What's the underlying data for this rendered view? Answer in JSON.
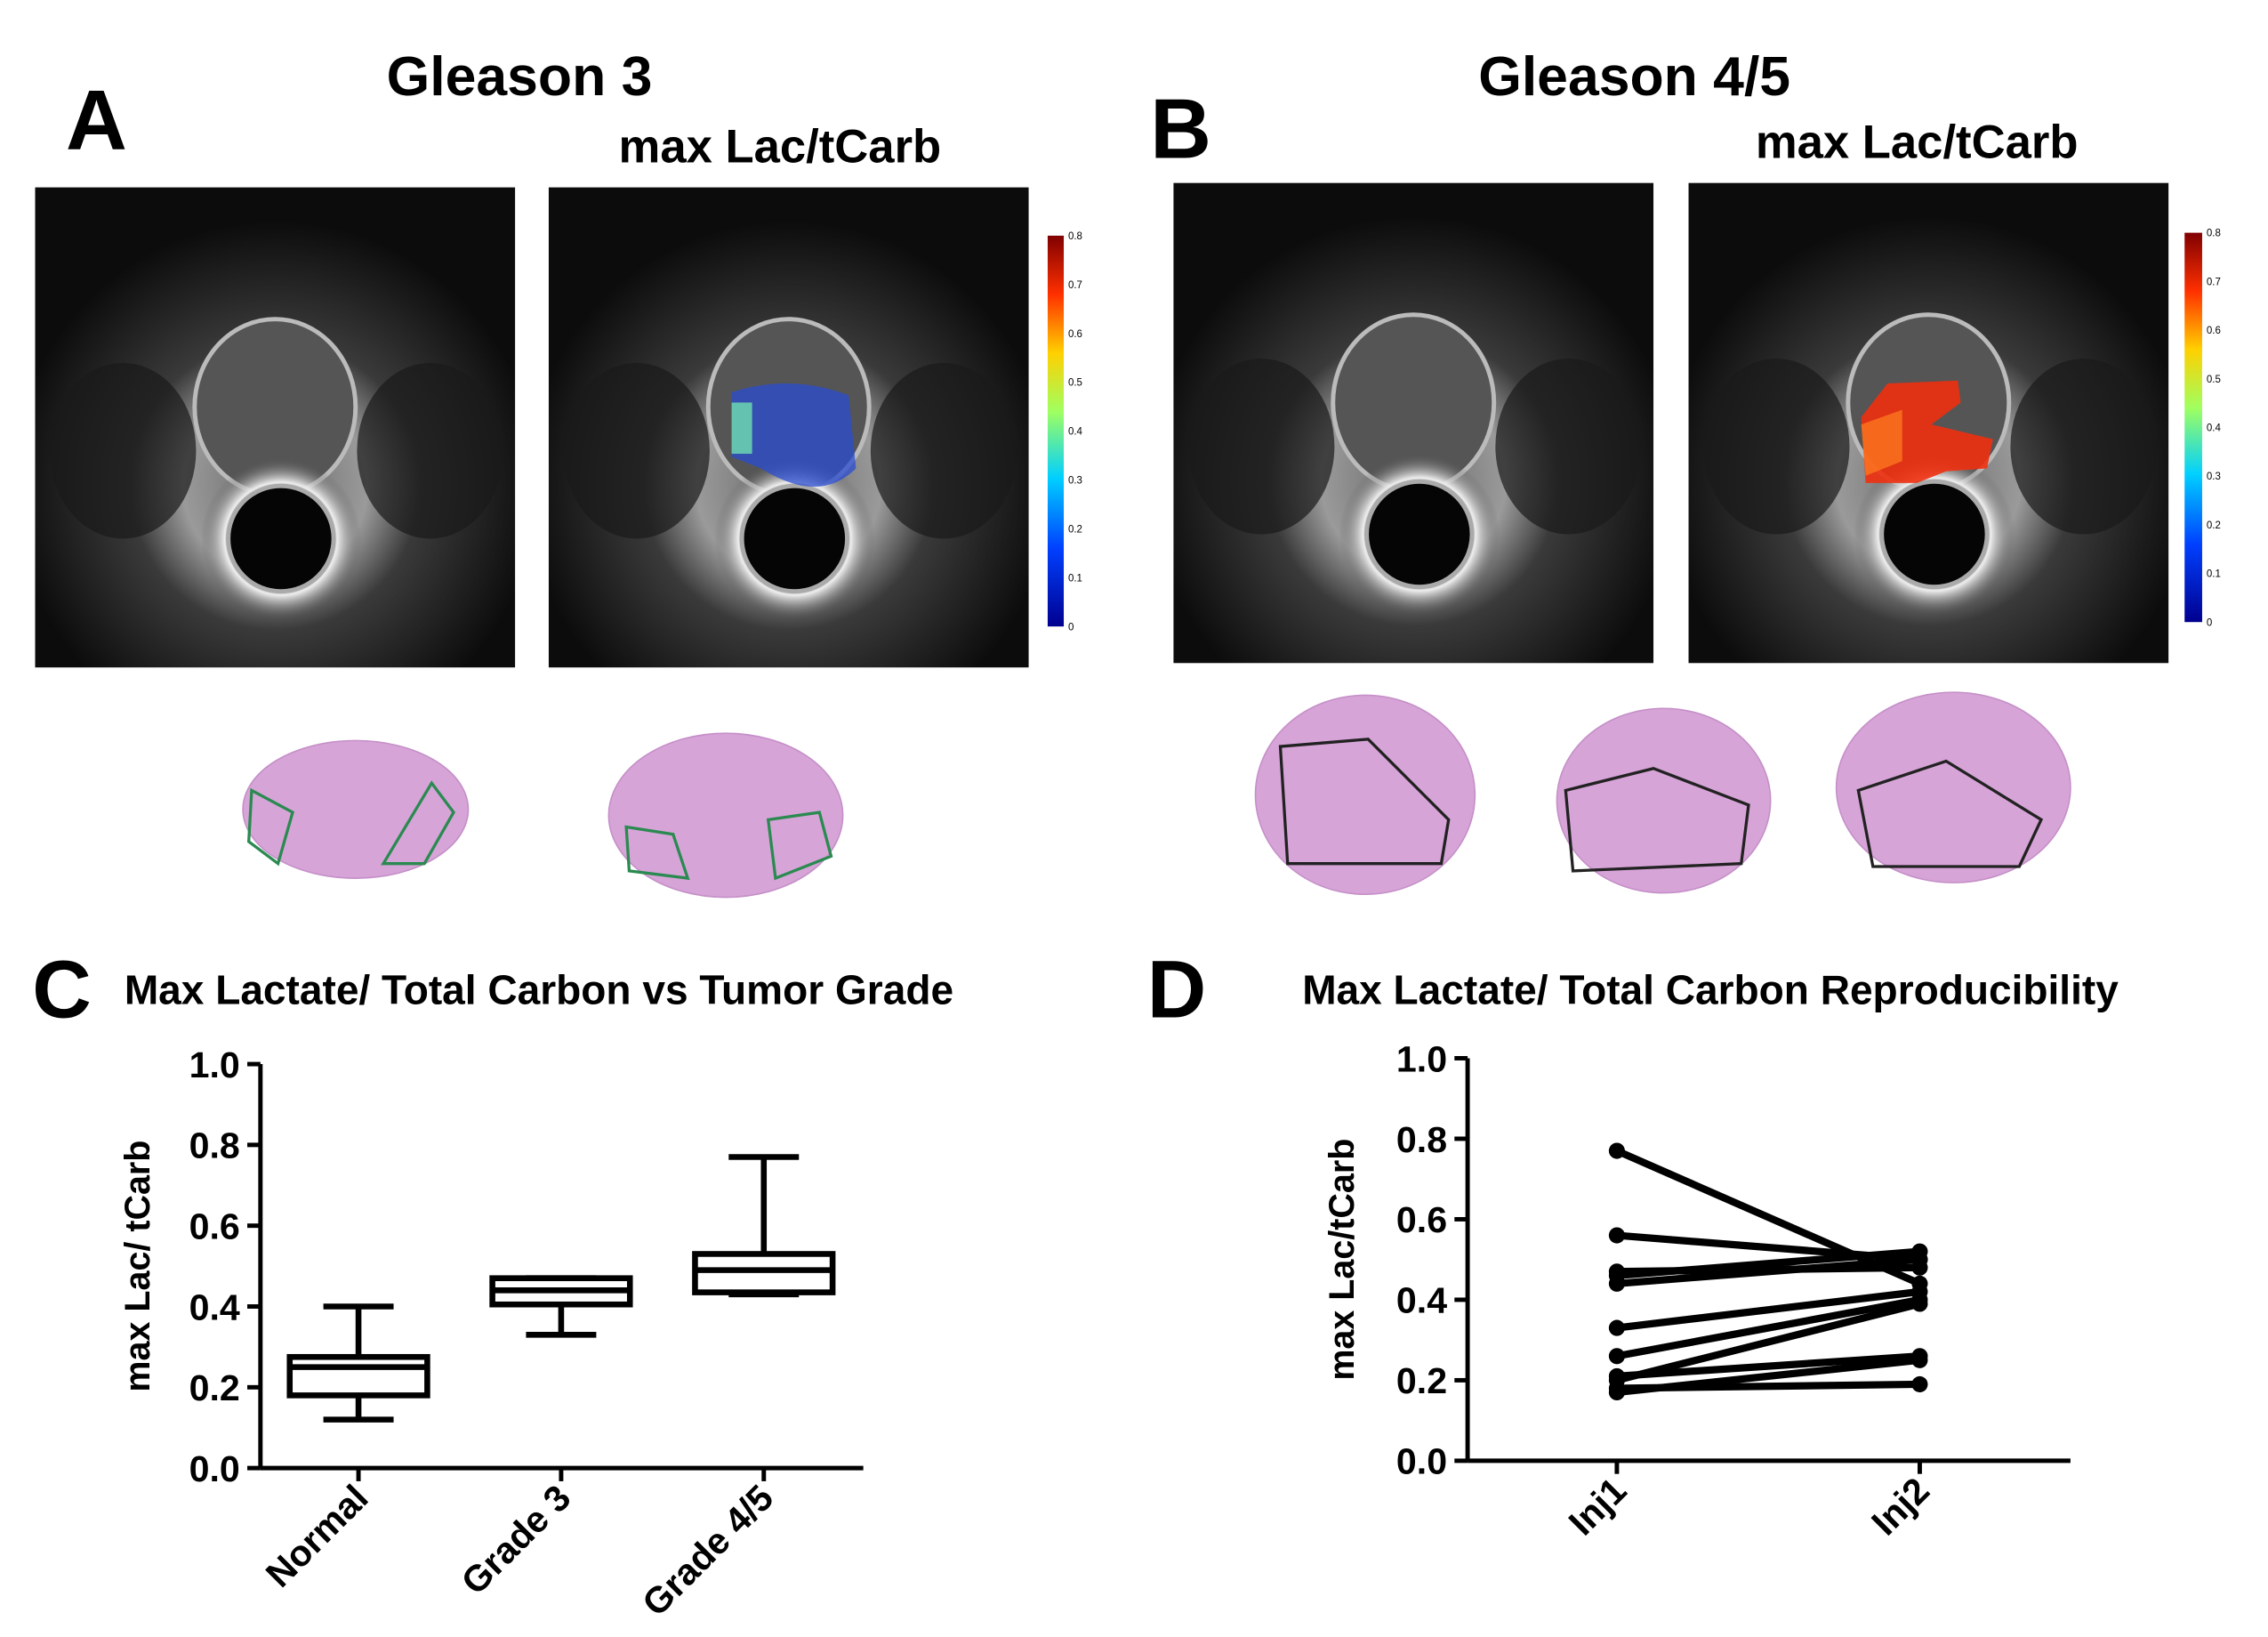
{
  "panels": {
    "A": {
      "label": "A",
      "title": "Gleason 3",
      "overlay_title": "max Lac/tCarb"
    },
    "B": {
      "label": "B",
      "title": "Gleason 4/5",
      "overlay_title": "max Lac/tCarb"
    }
  },
  "colorbar": {
    "ticks": [
      0,
      0.1,
      0.2,
      0.3,
      0.4,
      0.5,
      0.6,
      0.7,
      0.8
    ]
  },
  "chart_data": [
    {
      "type": "box",
      "label": "C",
      "title": "Max Lactate/ Total Carbon vs Tumor Grade",
      "y_label": "max Lac/ tCarb",
      "categories": [
        "Normal",
        "Grade 3",
        "Grade 4/5"
      ],
      "boxes": [
        {
          "min": 0.12,
          "q1": 0.18,
          "median": 0.25,
          "q3": 0.275,
          "max": 0.4
        },
        {
          "min": 0.33,
          "q1": 0.405,
          "median": 0.44,
          "q3": 0.47,
          "max": 0.47
        },
        {
          "min": 0.43,
          "q1": 0.435,
          "median": 0.49,
          "q3": 0.53,
          "max": 0.77
        }
      ],
      "color": "#000000",
      "ylim": [
        0,
        1
      ],
      "yticks": [
        {
          "value": 0,
          "label": "0.0"
        },
        0.2,
        0.4,
        0.6,
        0.8,
        {
          "value": 1,
          "label": "1.0"
        }
      ]
    },
    {
      "type": "line",
      "label": "D",
      "title": "Max Lactate/ Total Carbon Reproducibility",
      "y_label": "max Lac/tCarb",
      "categories": [
        "Inj1",
        "Inj2"
      ],
      "color": "#000000",
      "series": [
        {
          "values": [
            0.77,
            0.44
          ]
        },
        {
          "values": [
            0.56,
            0.5
          ]
        },
        {
          "values": [
            0.47,
            0.48
          ]
        },
        {
          "values": [
            0.46,
            0.52
          ]
        },
        {
          "values": [
            0.44,
            0.5
          ]
        },
        {
          "values": [
            0.33,
            0.42
          ]
        },
        {
          "values": [
            0.26,
            0.4
          ]
        },
        {
          "values": [
            0.21,
            0.26
          ]
        },
        {
          "values": [
            0.2,
            0.39
          ]
        },
        {
          "values": [
            0.18,
            0.19
          ]
        },
        {
          "values": [
            0.17,
            0.25
          ]
        }
      ],
      "ylim": [
        0,
        1
      ],
      "yticks": [
        {
          "value": 0,
          "label": "0.0"
        },
        0.2,
        0.4,
        0.6,
        0.8,
        {
          "value": 1,
          "label": "1.0"
        }
      ]
    }
  ]
}
